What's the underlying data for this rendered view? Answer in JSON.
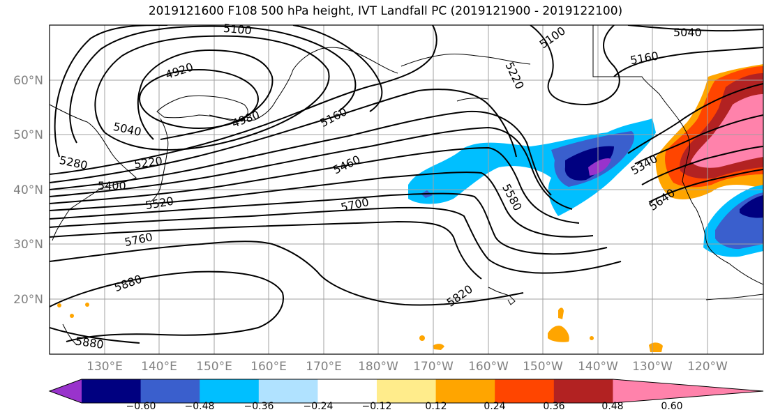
{
  "title": "2019121600 F108 500 hPa height, IVT Landfall PC (2019121900 - 2019122100)",
  "lat_labels": [
    "60°N",
    "50°N",
    "40°N",
    "30°N",
    "20°N"
  ],
  "lon_labels": [
    "130°E",
    "140°E",
    "150°E",
    "160°E",
    "170°E",
    "180°W",
    "170°W",
    "160°W",
    "150°W",
    "140°W",
    "130°W",
    "120°W"
  ],
  "contour_labels": [
    "5100",
    "4920",
    "5040",
    "4980",
    "5160",
    "5280",
    "5220",
    "5400",
    "5520",
    "5460",
    "5700",
    "5760",
    "5880",
    "5580",
    "5820",
    "5880",
    "5220",
    "5100",
    "5040",
    "5160",
    "5340",
    "5640"
  ],
  "colorbar": {
    "colors": [
      "#9933cc",
      "#000080",
      "#3a5fcd",
      "#00bfff",
      "#b0e2ff",
      "#ffffff",
      "#ffec8b",
      "#ffa500",
      "#ff4500",
      "#b22222",
      "#ff82ab"
    ],
    "ticks": [
      "−0.60",
      "−0.48",
      "−0.36",
      "−0.24",
      "−0.12",
      "0.12",
      "0.24",
      "0.36",
      "0.48",
      "0.60"
    ]
  }
}
